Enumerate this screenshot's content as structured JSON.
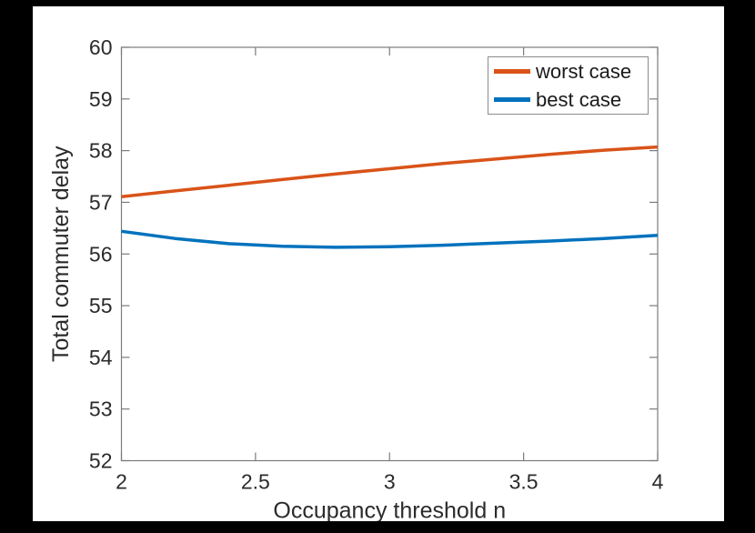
{
  "figure": {
    "outer_background": "#000000",
    "canvas_background": "#ffffff",
    "axis_color": "#7b7b7b",
    "text_color": "#2b2b2b"
  },
  "chart_data": {
    "type": "line",
    "title": "",
    "xlabel": "Occupancy threshold n",
    "ylabel": "Total commuter delay",
    "xlim": [
      2,
      4
    ],
    "ylim": [
      52,
      60
    ],
    "grid": false,
    "legend_position": "top-right",
    "x_ticks": [
      2,
      2.5,
      3,
      3.5,
      4
    ],
    "x_tick_labels": [
      "2",
      "2.5",
      "3",
      "3.5",
      "4"
    ],
    "y_ticks": [
      52,
      53,
      54,
      55,
      56,
      57,
      58,
      59,
      60
    ],
    "y_tick_labels": [
      "52",
      "53",
      "54",
      "55",
      "56",
      "57",
      "58",
      "59",
      "60"
    ],
    "x": [
      2.0,
      2.2,
      2.4,
      2.6,
      2.8,
      3.0,
      3.2,
      3.4,
      3.6,
      3.8,
      4.0
    ],
    "series": [
      {
        "name": "worst case",
        "color": "#D95319",
        "values": [
          57.11,
          57.22,
          57.33,
          57.44,
          57.55,
          57.65,
          57.75,
          57.84,
          57.93,
          58.01,
          58.07
        ]
      },
      {
        "name": "best case",
        "color": "#0072BD",
        "values": [
          56.44,
          56.3,
          56.2,
          56.15,
          56.13,
          56.14,
          56.17,
          56.21,
          56.25,
          56.3,
          56.36
        ]
      }
    ]
  }
}
